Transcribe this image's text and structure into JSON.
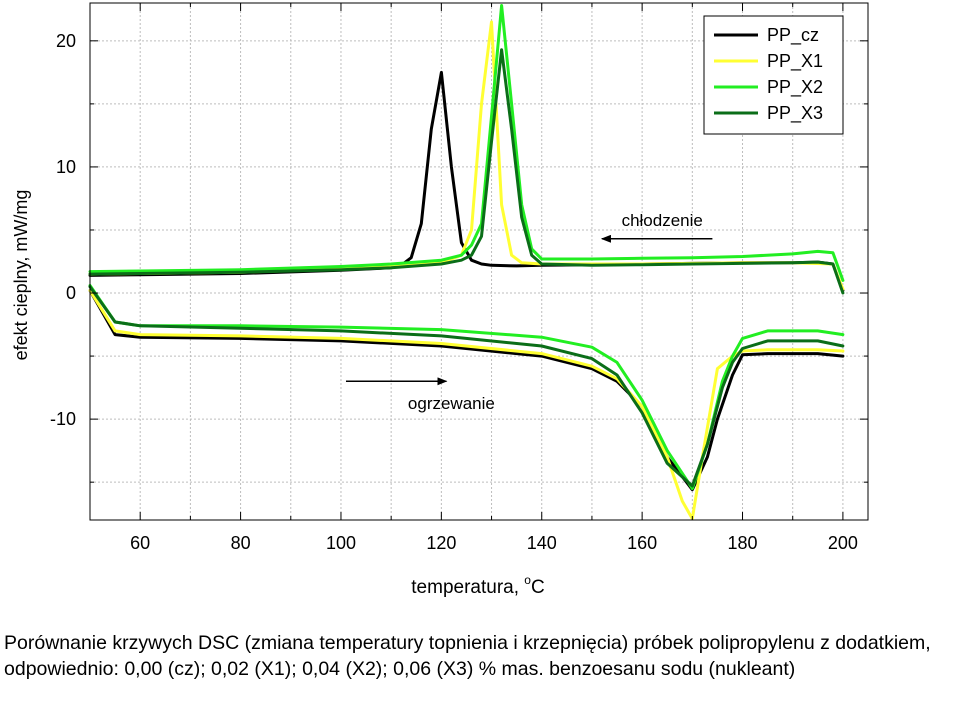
{
  "chart_data": {
    "type": "line",
    "title": "",
    "xlabel_main": "temperatura, ",
    "xlabel_sup": "o",
    "xlabel_unit": "C",
    "ylabel": "efekt cieplny, mW/mg",
    "xlim": [
      50,
      205
    ],
    "ylim": [
      -18,
      23
    ],
    "x_ticks": [
      60,
      80,
      100,
      120,
      140,
      160,
      180,
      200
    ],
    "x_tick_labels": [
      "60",
      "80",
      "100",
      "120",
      "140",
      "160",
      "180",
      "200"
    ],
    "y_ticks": [
      -10,
      0,
      10,
      20
    ],
    "y_tick_labels": [
      "-10",
      "0",
      "10",
      "20"
    ],
    "x_grid": [
      50,
      60,
      70,
      80,
      90,
      100,
      110,
      120,
      130,
      140,
      150,
      160,
      170,
      180,
      190,
      200
    ],
    "y_grid": [
      -15,
      -10,
      -5,
      0,
      5,
      10,
      15,
      20
    ],
    "grid": true,
    "legend_position": "top-right",
    "annotations": [
      {
        "text": "chłodzenie",
        "x": 164,
        "y": 5.3,
        "arrow_from": [
          174,
          4.3
        ],
        "arrow_to": [
          152,
          4.3
        ]
      },
      {
        "text": "ogrzewanie",
        "x": 122,
        "y": -9.2,
        "arrow_from": [
          101,
          -7
        ],
        "arrow_to": [
          121,
          -7
        ]
      }
    ],
    "series": [
      {
        "name": "PP_cz",
        "color": "#000000",
        "cooling": {
          "x": [
            50,
            60,
            80,
            100,
            110,
            112,
            114,
            116,
            118,
            120,
            122,
            124,
            126,
            128,
            130,
            135,
            140,
            150,
            160,
            170,
            180,
            190,
            195,
            198,
            200
          ],
          "y": [
            1.4,
            1.45,
            1.55,
            1.8,
            2.0,
            2.2,
            2.8,
            5.5,
            13.0,
            17.5,
            10.0,
            4.0,
            2.6,
            2.3,
            2.2,
            2.15,
            2.2,
            2.25,
            2.3,
            2.35,
            2.4,
            2.4,
            2.45,
            2.3,
            0.2
          ]
        },
        "heating": {
          "x": [
            50,
            55,
            60,
            80,
            100,
            120,
            140,
            150,
            155,
            160,
            165,
            170,
            173,
            175,
            178,
            180,
            185,
            195,
            200
          ],
          "y": [
            0.2,
            -3.3,
            -3.5,
            -3.6,
            -3.8,
            -4.2,
            -5.0,
            -6.0,
            -7.0,
            -9.0,
            -13.0,
            -15.6,
            -13.0,
            -10.0,
            -6.5,
            -4.9,
            -4.8,
            -4.8,
            -5.0
          ]
        }
      },
      {
        "name": "PP_X1",
        "color": "#ffff33",
        "cooling": {
          "x": [
            50,
            60,
            80,
            100,
            110,
            120,
            124,
            126,
            128,
            130,
            132,
            134,
            136,
            140,
            150,
            160,
            170,
            180,
            190,
            198,
            200
          ],
          "y": [
            1.5,
            1.55,
            1.65,
            1.9,
            2.1,
            2.4,
            3.0,
            5.0,
            15.0,
            21.5,
            7.0,
            3.0,
            2.4,
            2.3,
            2.3,
            2.3,
            2.35,
            2.4,
            2.4,
            2.3,
            0.3
          ]
        },
        "heating": {
          "x": [
            50,
            55,
            60,
            80,
            100,
            120,
            140,
            150,
            155,
            160,
            165,
            168,
            170,
            172,
            175,
            178,
            180,
            185,
            195,
            200
          ],
          "y": [
            0.2,
            -3.0,
            -3.3,
            -3.4,
            -3.6,
            -4.0,
            -4.8,
            -5.8,
            -6.8,
            -9.0,
            -13.0,
            -16.5,
            -17.9,
            -13.0,
            -6.0,
            -5.0,
            -4.6,
            -4.5,
            -4.5,
            -4.6
          ]
        }
      },
      {
        "name": "PP_X2",
        "color": "#22ee22",
        "cooling": {
          "x": [
            50,
            60,
            80,
            100,
            110,
            120,
            124,
            126,
            128,
            130,
            132,
            134,
            136,
            138,
            140,
            150,
            160,
            170,
            180,
            190,
            195,
            198,
            200
          ],
          "y": [
            1.7,
            1.75,
            1.85,
            2.1,
            2.3,
            2.6,
            3.0,
            3.8,
            5.5,
            14.0,
            22.8,
            15.0,
            7.0,
            3.5,
            2.7,
            2.7,
            2.75,
            2.8,
            2.9,
            3.1,
            3.3,
            3.2,
            1.0
          ]
        },
        "heating": {
          "x": [
            50,
            55,
            60,
            80,
            100,
            120,
            140,
            150,
            155,
            160,
            165,
            170,
            173,
            176,
            178,
            180,
            185,
            195,
            200
          ],
          "y": [
            0.6,
            -2.3,
            -2.6,
            -2.6,
            -2.7,
            -2.9,
            -3.5,
            -4.3,
            -5.5,
            -8.5,
            -12.5,
            -15.5,
            -12.0,
            -7.0,
            -5.0,
            -3.6,
            -3.0,
            -3.0,
            -3.3
          ]
        }
      },
      {
        "name": "PP_X3",
        "color": "#0b6e18",
        "cooling": {
          "x": [
            50,
            60,
            80,
            100,
            110,
            120,
            124,
            126,
            128,
            130,
            132,
            134,
            136,
            138,
            140,
            150,
            160,
            170,
            180,
            190,
            195,
            198,
            200
          ],
          "y": [
            1.5,
            1.55,
            1.65,
            1.85,
            2.0,
            2.3,
            2.6,
            3.0,
            4.5,
            12.0,
            19.3,
            13.0,
            6.0,
            3.0,
            2.3,
            2.2,
            2.25,
            2.3,
            2.35,
            2.4,
            2.45,
            2.3,
            0.0
          ]
        },
        "heating": {
          "x": [
            50,
            55,
            60,
            80,
            100,
            120,
            140,
            150,
            155,
            160,
            165,
            170,
            173,
            176,
            178,
            180,
            185,
            195,
            200
          ],
          "y": [
            0.5,
            -2.3,
            -2.6,
            -2.8,
            -3.0,
            -3.4,
            -4.2,
            -5.2,
            -6.5,
            -9.5,
            -13.5,
            -15.3,
            -12.0,
            -7.5,
            -5.5,
            -4.4,
            -3.8,
            -3.8,
            -4.2
          ]
        }
      }
    ]
  },
  "caption": "Porównanie krzywych DSC (zmiana temperatury topnienia i krzepnięcia) próbek polipropylenu z dodatkiem, odpowiednio: 0,00 (cz); 0,02 (X1); 0,04 (X2); 0,06 (X3) % mas. benzoesanu sodu (nukleant)"
}
